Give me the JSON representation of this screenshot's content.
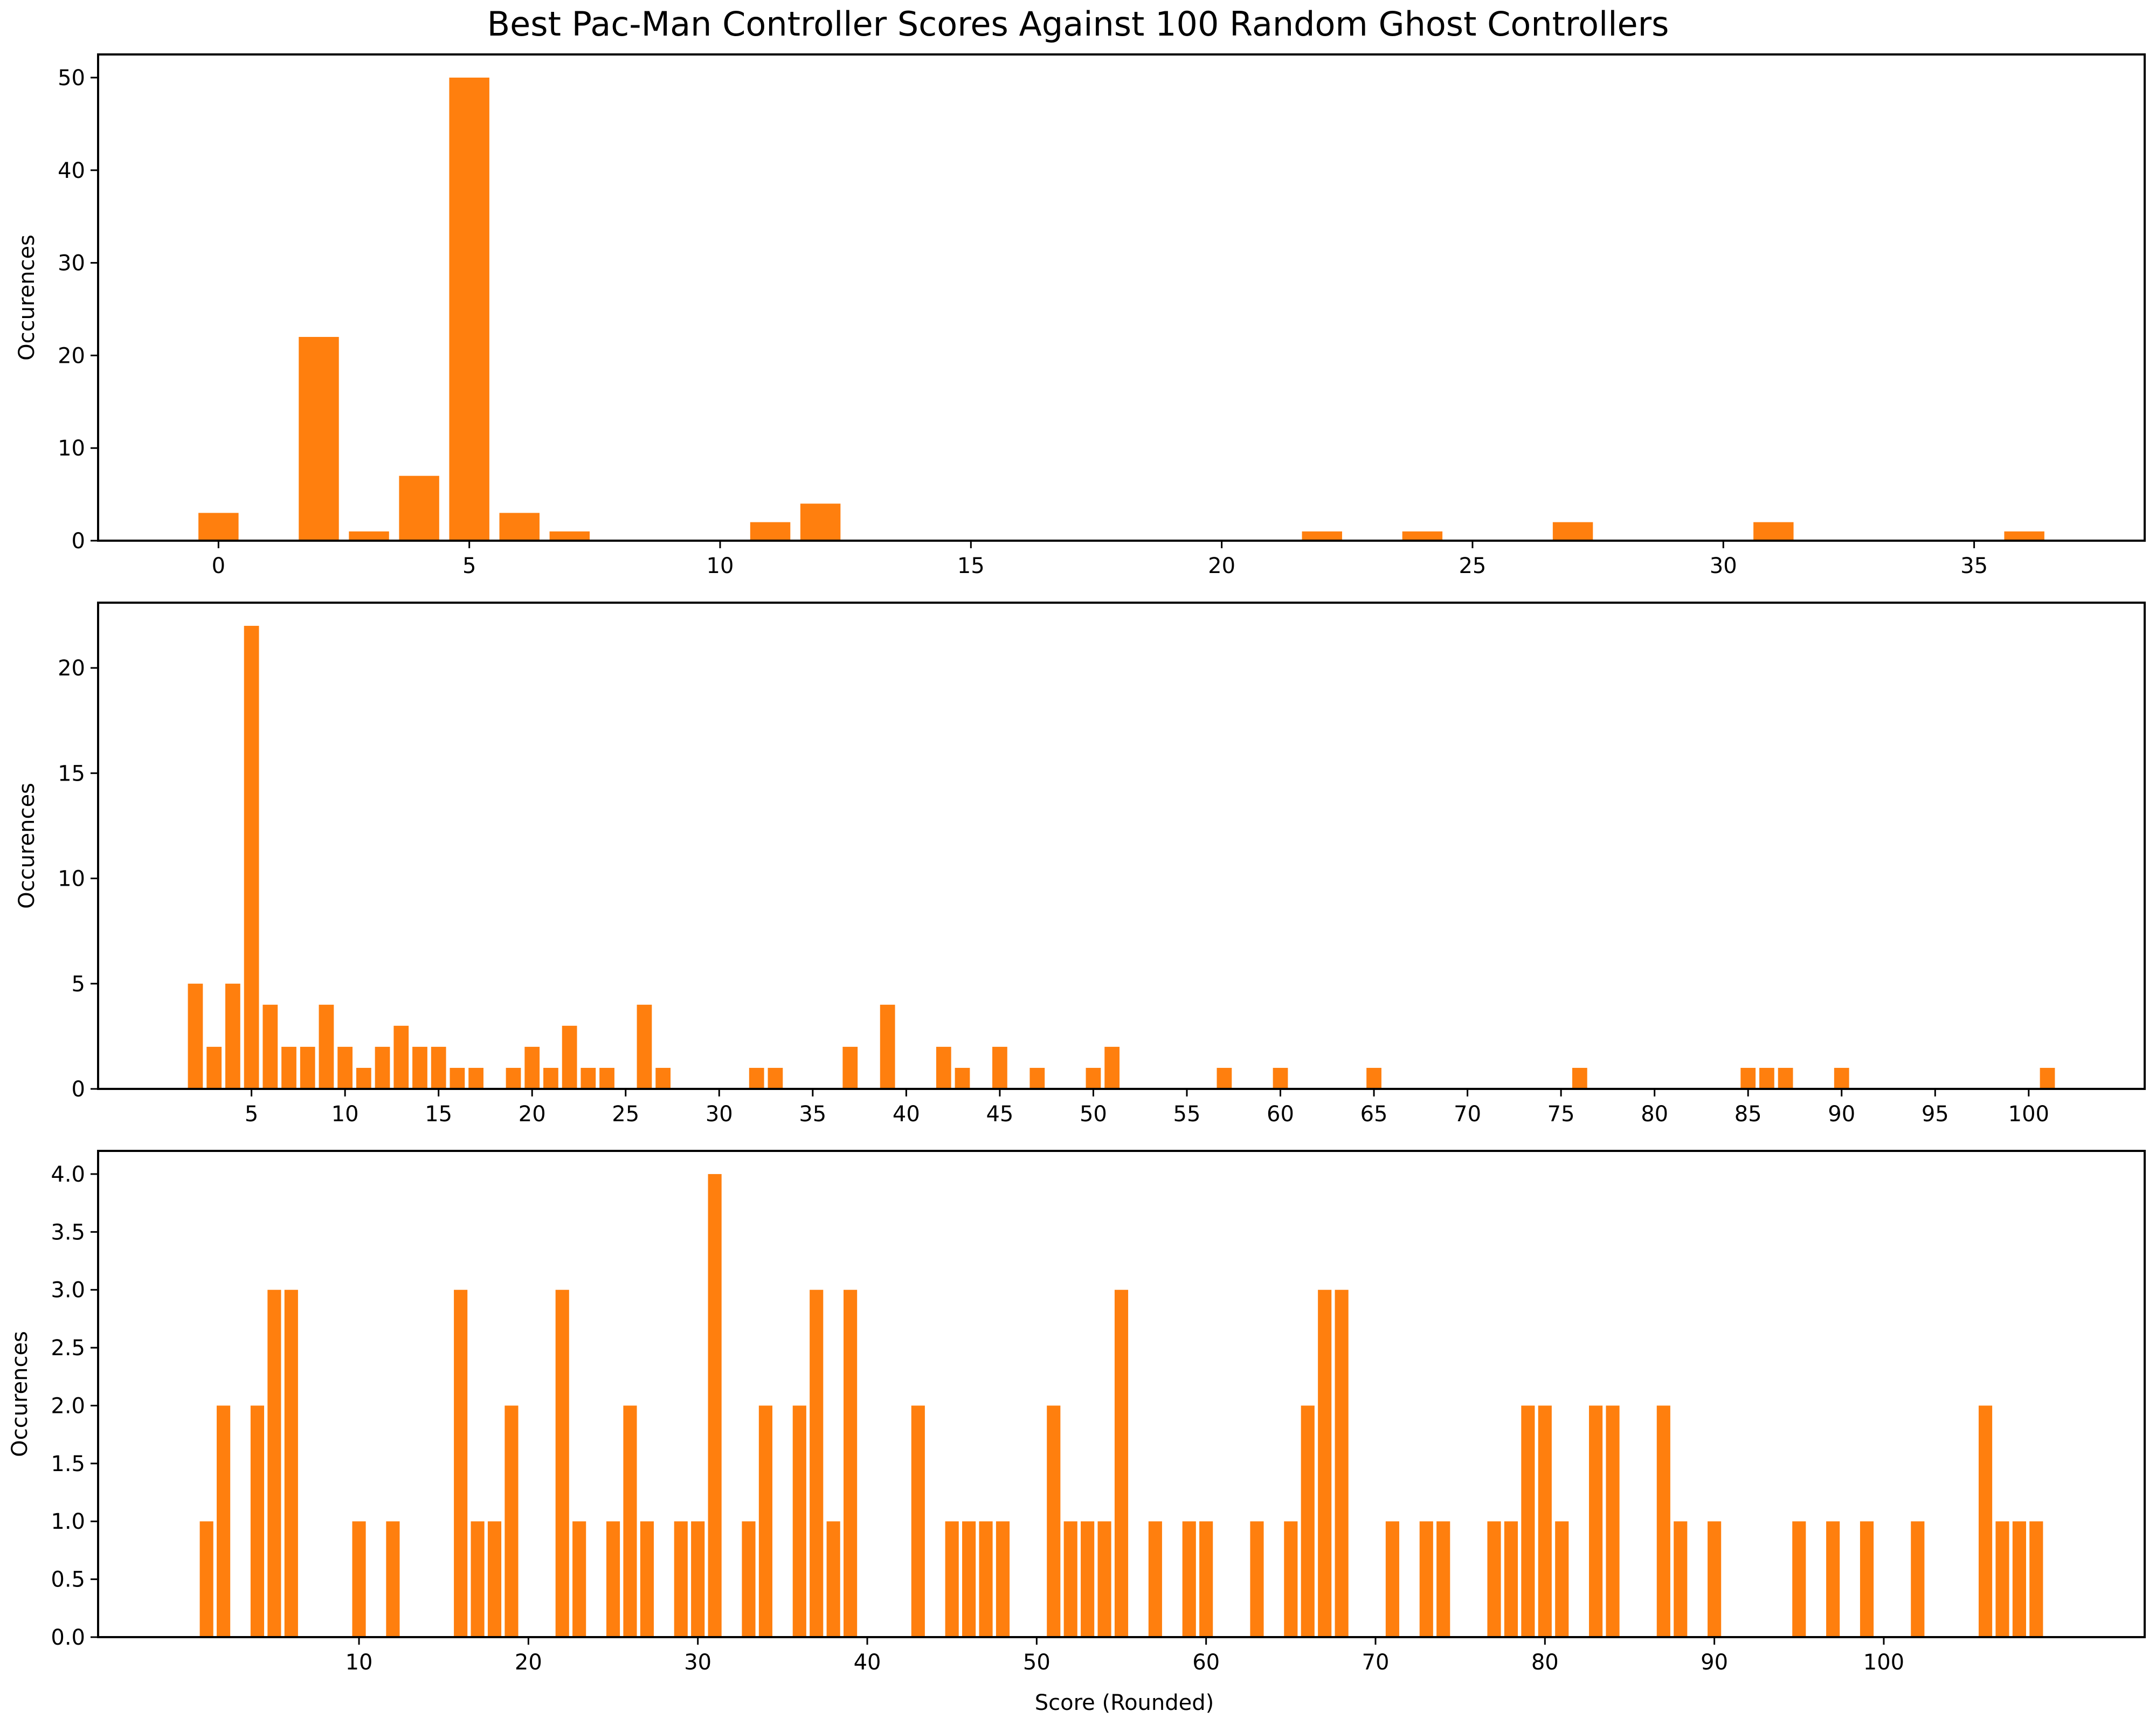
{
  "title": "Best Pac-Man Controller Scores Against 100 Random Ghost Controllers",
  "bar_color": "#ff7f0e",
  "chart_data": [
    {
      "type": "bar",
      "xlabel": "",
      "ylabel": "Occurences",
      "xlim": [
        -2.4,
        38.4
      ],
      "ylim": [
        0,
        52.5
      ],
      "xticks": [
        0,
        5,
        10,
        15,
        20,
        25,
        30,
        35
      ],
      "yticks": [
        0,
        10,
        20,
        30,
        40,
        50
      ],
      "x": [
        0,
        2,
        3,
        4,
        5,
        6,
        7,
        11,
        12,
        22,
        24,
        27,
        31,
        36
      ],
      "values": [
        3,
        22,
        1,
        7,
        50,
        3,
        1,
        2,
        4,
        1,
        1,
        2,
        2,
        1
      ]
    },
    {
      "type": "bar",
      "xlabel": "",
      "ylabel": "Occurences",
      "xlim": [
        -3.2,
        106.2
      ],
      "ylim": [
        0,
        23.1
      ],
      "xticks": [
        5,
        10,
        15,
        20,
        25,
        30,
        35,
        40,
        45,
        50,
        55,
        60,
        65,
        70,
        75,
        80,
        85,
        90,
        95,
        100
      ],
      "yticks": [
        0,
        5,
        10,
        15,
        20
      ],
      "x": [
        2,
        3,
        4,
        5,
        6,
        7,
        8,
        9,
        10,
        11,
        12,
        13,
        14,
        15,
        16,
        17,
        19,
        20,
        21,
        22,
        23,
        24,
        26,
        27,
        32,
        33,
        37,
        39,
        42,
        43,
        45,
        47,
        50,
        51,
        57,
        60,
        65,
        76,
        85,
        86,
        87,
        90,
        101
      ],
      "values": [
        5,
        2,
        5,
        22,
        4,
        2,
        2,
        4,
        2,
        1,
        2,
        3,
        2,
        2,
        1,
        1,
        1,
        2,
        1,
        3,
        1,
        1,
        4,
        1,
        1,
        1,
        2,
        4,
        2,
        1,
        2,
        1,
        1,
        2,
        1,
        1,
        1,
        1,
        1,
        1,
        1,
        1,
        1
      ]
    },
    {
      "type": "bar",
      "xlabel": "Score (Rounded)",
      "ylabel": "Occurences",
      "xlim": [
        -5.4,
        115.4
      ],
      "ylim": [
        0,
        4.2
      ],
      "xticks": [
        10,
        20,
        30,
        40,
        50,
        60,
        70,
        80,
        90,
        100
      ],
      "yticks": [
        0.0,
        0.5,
        1.0,
        1.5,
        2.0,
        2.5,
        3.0,
        3.5,
        4.0
      ],
      "x": [
        1,
        2,
        4,
        5,
        6,
        10,
        12,
        16,
        17,
        18,
        19,
        22,
        23,
        25,
        26,
        27,
        29,
        30,
        31,
        33,
        34,
        36,
        37,
        38,
        39,
        43,
        45,
        46,
        47,
        48,
        51,
        52,
        53,
        54,
        55,
        57,
        59,
        60,
        63,
        65,
        66,
        67,
        68,
        71,
        73,
        74,
        77,
        78,
        79,
        80,
        81,
        83,
        84,
        87,
        88,
        90,
        95,
        97,
        99,
        102,
        106,
        107,
        108,
        109
      ],
      "values": [
        1,
        2,
        2,
        3,
        3,
        1,
        1,
        3,
        1,
        1,
        2,
        3,
        1,
        1,
        2,
        1,
        1,
        1,
        4,
        1,
        2,
        2,
        3,
        1,
        3,
        2,
        1,
        1,
        1,
        1,
        2,
        1,
        1,
        1,
        3,
        1,
        1,
        1,
        1,
        1,
        2,
        3,
        3,
        1,
        1,
        1,
        1,
        1,
        2,
        2,
        1,
        2,
        2,
        2,
        1,
        1,
        1,
        1,
        1,
        1,
        2,
        1,
        1,
        1
      ]
    }
  ]
}
